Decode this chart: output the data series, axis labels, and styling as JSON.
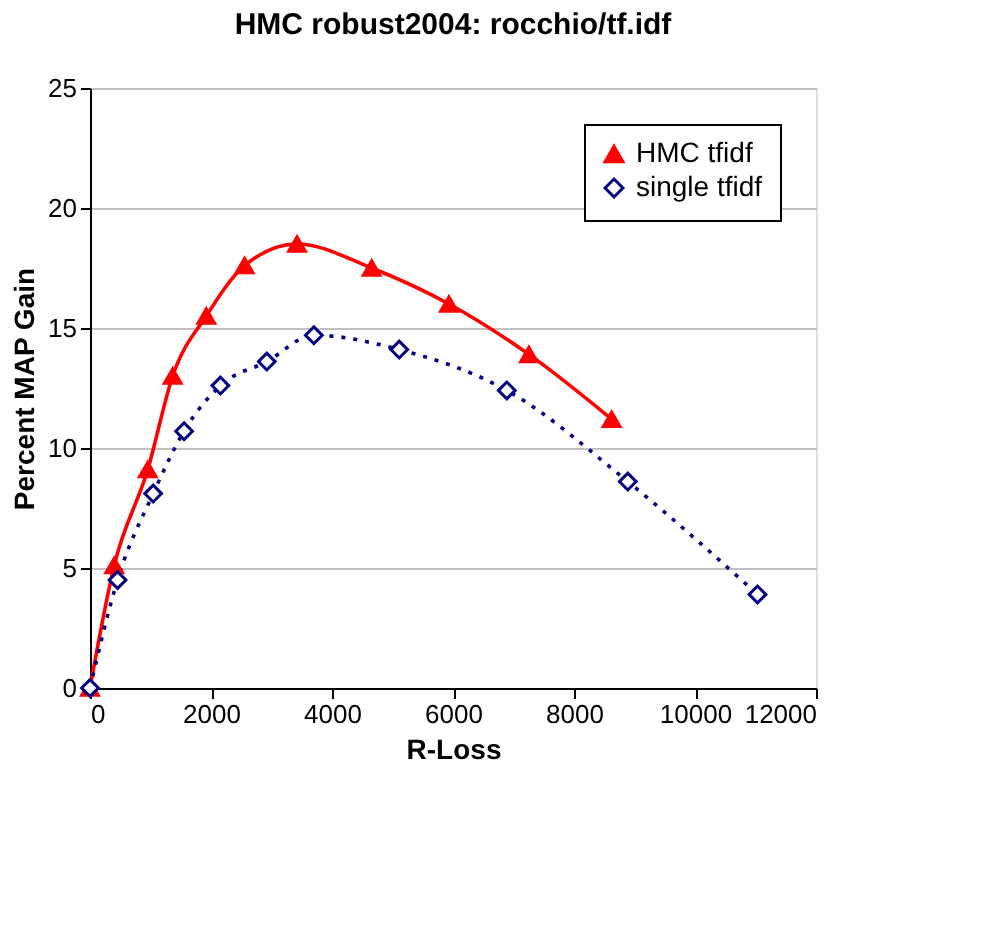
{
  "chart_data": {
    "type": "line",
    "title": "HMC robust2004: rocchio/tf.idf",
    "xlabel": "R-Loss",
    "ylabel": "Percent MAP Gain",
    "xlim": [
      0,
      12000
    ],
    "xticks": [
      0,
      2000,
      4000,
      6000,
      8000,
      10000,
      12000
    ],
    "ylim": [
      0,
      25
    ],
    "yticks": [
      0,
      5,
      10,
      15,
      20,
      25
    ],
    "grid": "y",
    "legend": "top right",
    "series": [
      {
        "name": "HMC tfidf",
        "color": "#ff0000",
        "marker": "triangle",
        "line_style": "solid",
        "x": [
          0,
          400,
          955,
          1367,
          1922,
          2555,
          3422,
          4655,
          5933,
          7255,
          8622
        ],
        "values": [
          0,
          5.1,
          9.1,
          13.0,
          15.5,
          17.6,
          18.5,
          17.5,
          16.0,
          13.9,
          11.2
        ]
      },
      {
        "name": "single tfidf",
        "color": "#000080",
        "marker": "diamond",
        "line_style": "dotted",
        "x": [
          0,
          455,
          1044,
          1555,
          2155,
          2922,
          3700,
          5111,
          6889,
          8889,
          11033
        ],
        "values": [
          0,
          4.5,
          8.1,
          10.7,
          12.6,
          13.6,
          14.7,
          14.1,
          12.4,
          8.6,
          3.9
        ]
      }
    ]
  }
}
